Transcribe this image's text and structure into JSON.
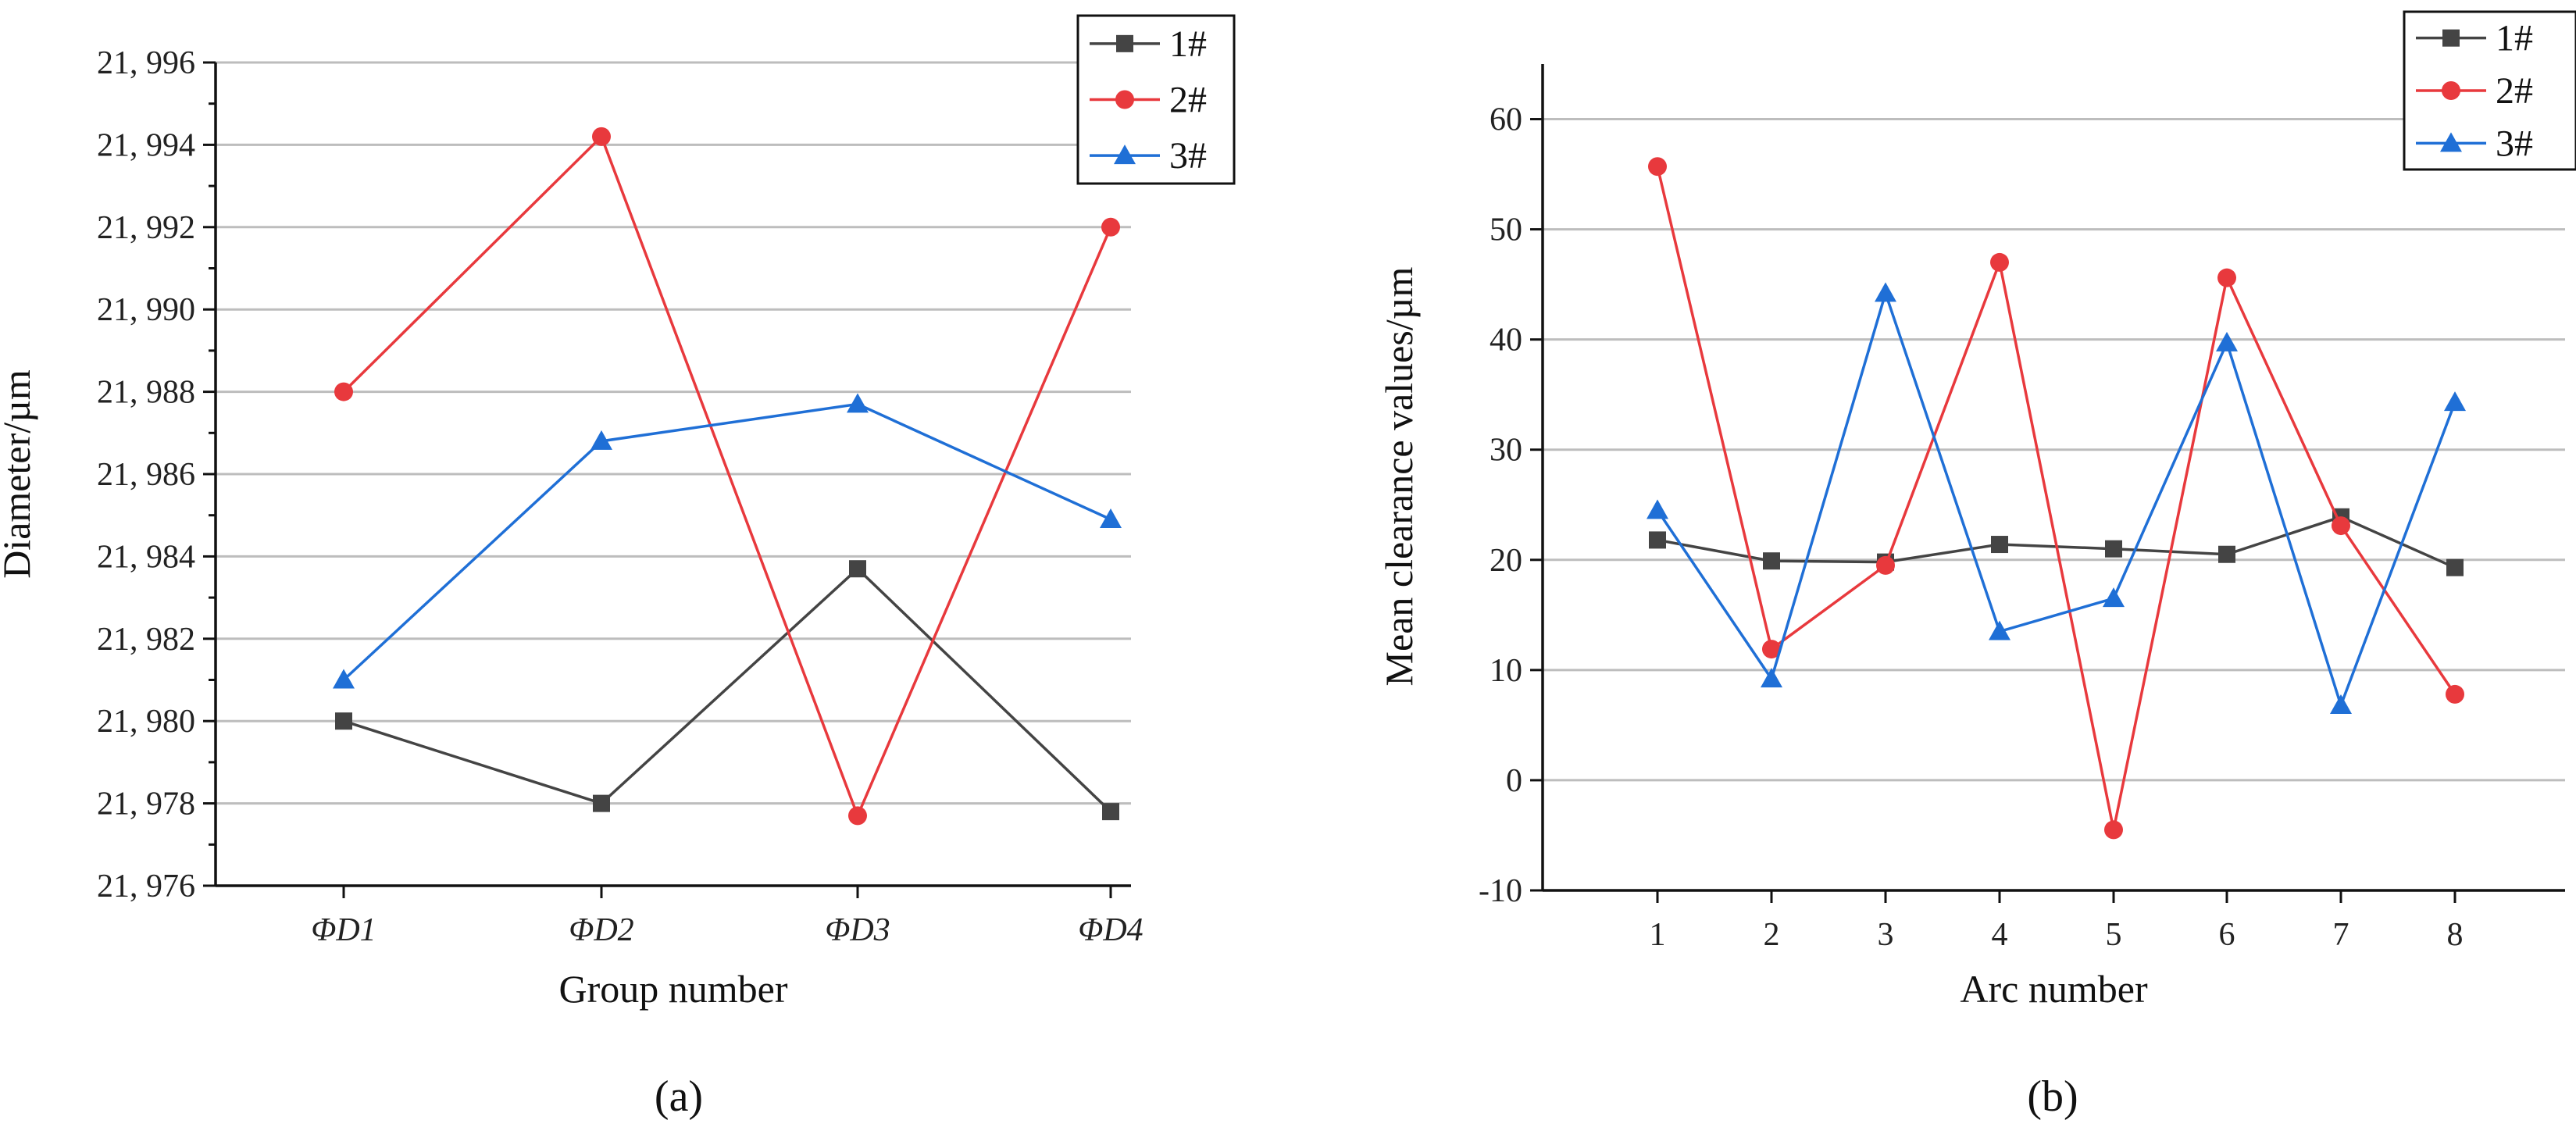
{
  "chart_data": [
    {
      "panel": "a",
      "type": "line",
      "caption": "(a)",
      "xlabel": "Group number",
      "ylabel": "Diameter/µm",
      "categories": [
        "ΦD1",
        "ΦD2",
        "ΦD3",
        "ΦD4"
      ],
      "ylim": [
        21976,
        21996
      ],
      "yticks": [
        {
          "value": 21976,
          "label": "21, 976"
        },
        {
          "value": 21978,
          "label": "21, 978"
        },
        {
          "value": 21980,
          "label": "21, 980"
        },
        {
          "value": 21982,
          "label": "21, 982"
        },
        {
          "value": 21984,
          "label": "21, 984"
        },
        {
          "value": 21986,
          "label": "21, 986"
        },
        {
          "value": 21988,
          "label": "21, 988"
        },
        {
          "value": 21990,
          "label": "21, 990"
        },
        {
          "value": 21992,
          "label": "21, 992"
        },
        {
          "value": 21994,
          "label": "21, 994"
        },
        {
          "value": 21996,
          "label": "21, 996"
        }
      ],
      "grid": true,
      "legend_position": "top-right",
      "series": [
        {
          "name": "1#",
          "color": "#444444",
          "marker": "square",
          "values": [
            21980.0,
            21978.0,
            21983.7,
            21977.8
          ]
        },
        {
          "name": "2#",
          "color": "#e8393d",
          "marker": "circle",
          "values": [
            21988.0,
            21994.2,
            21977.7,
            21992.0
          ]
        },
        {
          "name": "3#",
          "color": "#1f6fd6",
          "marker": "triangle",
          "values": [
            21981.0,
            21986.8,
            21987.7,
            21984.9
          ]
        }
      ]
    },
    {
      "panel": "b",
      "type": "line",
      "caption": "(b)",
      "xlabel": "Arc  number",
      "ylabel": "Mean clearance values/µm",
      "categories": [
        "1",
        "2",
        "3",
        "4",
        "5",
        "6",
        "7",
        "8"
      ],
      "ylim": [
        -10,
        65
      ],
      "yticks": [
        {
          "value": -10,
          "label": "-10"
        },
        {
          "value": 0,
          "label": "0"
        },
        {
          "value": 10,
          "label": "10"
        },
        {
          "value": 20,
          "label": "20"
        },
        {
          "value": 30,
          "label": "30"
        },
        {
          "value": 40,
          "label": "40"
        },
        {
          "value": 50,
          "label": "50"
        },
        {
          "value": 60,
          "label": "60"
        }
      ],
      "grid": true,
      "legend_position": "top-right",
      "series": [
        {
          "name": "1#",
          "color": "#444444",
          "marker": "square",
          "values": [
            21.8,
            19.9,
            19.8,
            21.4,
            21.0,
            20.5,
            23.9,
            19.3
          ]
        },
        {
          "name": "2#",
          "color": "#e8393d",
          "marker": "circle",
          "values": [
            55.7,
            11.9,
            19.5,
            47.0,
            -4.5,
            45.6,
            23.1,
            7.8
          ]
        },
        {
          "name": "3#",
          "color": "#1f6fd6",
          "marker": "triangle",
          "values": [
            24.5,
            9.2,
            44.2,
            13.5,
            16.5,
            39.7,
            6.8,
            34.3
          ]
        }
      ]
    }
  ]
}
